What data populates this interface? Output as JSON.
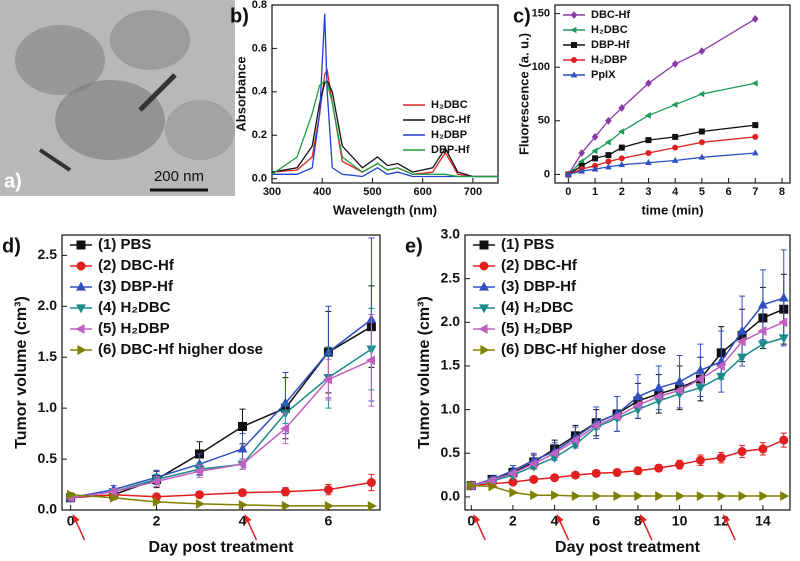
{
  "image_panel": {
    "panel_label": "a)",
    "scale_bar": "200 nm"
  },
  "chart_data": [
    {
      "type": "line",
      "panel_label": "b)",
      "xlabel": "Wavelength (nm)",
      "ylabel": "Absorbance",
      "xlim": [
        300,
        750
      ],
      "xticks": [
        300,
        400,
        500,
        600,
        700
      ],
      "ylim": [
        -0.02,
        0.8
      ],
      "yticks": [
        {
          "value": 0,
          "label": "0.0"
        },
        0.2,
        0.4,
        0.6,
        0.8
      ],
      "legend": "lower right",
      "x": [
        300,
        350,
        380,
        395,
        405,
        410,
        420,
        440,
        480,
        510,
        530,
        550,
        580,
        620,
        645,
        670,
        700,
        750
      ],
      "series": [
        {
          "name": "H₂DBC",
          "color": "#e02020",
          "values": [
            0.03,
            0.04,
            0.1,
            0.3,
            0.48,
            0.5,
            0.35,
            0.08,
            0.03,
            0.07,
            0.04,
            0.05,
            0.02,
            0.03,
            0.12,
            0.02,
            0.01,
            0.01
          ]
        },
        {
          "name": "DBC-Hf",
          "color": "#111111",
          "values": [
            0.03,
            0.05,
            0.15,
            0.35,
            0.44,
            0.45,
            0.4,
            0.15,
            0.05,
            0.1,
            0.06,
            0.07,
            0.03,
            0.05,
            0.14,
            0.03,
            0.01,
            0.01
          ]
        },
        {
          "name": "H₂DBP",
          "color": "#2040d0",
          "values": [
            0.02,
            0.02,
            0.05,
            0.3,
            0.76,
            0.4,
            0.05,
            0.02,
            0.01,
            0.05,
            0.02,
            0.03,
            0.01,
            0.01,
            0.01,
            0.01,
            0.01,
            0.01
          ]
        },
        {
          "name": "DBP-Hf",
          "color": "#20a040",
          "values": [
            0.02,
            0.1,
            0.3,
            0.43,
            0.45,
            0.44,
            0.35,
            0.1,
            0.03,
            0.07,
            0.04,
            0.05,
            0.02,
            0.02,
            0.02,
            0.01,
            0.01,
            0.01
          ]
        }
      ]
    },
    {
      "type": "line",
      "panel_label": "c)",
      "xlabel": "time (min)",
      "ylabel": "Fluorescence (a. u.)",
      "xlim": [
        -0.5,
        8.3
      ],
      "xticks": [
        0,
        1,
        2,
        3,
        4,
        5,
        6,
        7,
        8
      ],
      "ylim": [
        -8,
        158
      ],
      "yticks": [
        0,
        50,
        100,
        150
      ],
      "legend": "upper left",
      "x": [
        0,
        0.5,
        1,
        1.5,
        2,
        3,
        4,
        5,
        7
      ],
      "series": [
        {
          "name": "DBC-Hf",
          "color": "#8a3aa8",
          "marker": "diamond",
          "values": [
            0,
            20,
            35,
            50,
            62,
            85,
            103,
            115,
            145
          ]
        },
        {
          "name": "H₂DBC",
          "color": "#1f9a5a",
          "marker": "triangle-left",
          "values": [
            0,
            12,
            22,
            30,
            40,
            55,
            65,
            75,
            85
          ]
        },
        {
          "name": "DBP-Hf",
          "color": "#111111",
          "marker": "square",
          "values": [
            0,
            8,
            15,
            18,
            25,
            32,
            35,
            40,
            46
          ]
        },
        {
          "name": "H₂DBP",
          "color": "#e02020",
          "marker": "circle",
          "values": [
            0,
            5,
            8,
            12,
            15,
            20,
            25,
            30,
            35
          ]
        },
        {
          "name": "PpIX",
          "color": "#3050c0",
          "marker": "triangle-up",
          "values": [
            0,
            3,
            5,
            7,
            9,
            11,
            13,
            16,
            20
          ]
        }
      ]
    },
    {
      "type": "line",
      "panel_label": "d)",
      "xlabel": "Day post treatment",
      "ylabel": "Tumor volume (cm³)",
      "xlim": [
        -0.2,
        7.2
      ],
      "xticks": [
        0,
        2,
        4,
        6
      ],
      "ylim": [
        0,
        2.7
      ],
      "yticks": [
        {
          "value": 0,
          "label": "0.0"
        },
        0.5,
        {
          "value": 1,
          "label": "1.0"
        },
        1.5,
        {
          "value": 2,
          "label": "2.0"
        },
        2.5
      ],
      "legend": "upper left",
      "arrow_days": [
        0,
        4
      ],
      "x": [
        0,
        1,
        2,
        3,
        4,
        5,
        6,
        7
      ],
      "series": [
        {
          "name": "(1) PBS",
          "color": "#111111",
          "marker": "square",
          "values": [
            0.12,
            0.15,
            0.3,
            0.55,
            0.82,
            1.0,
            1.55,
            1.8
          ],
          "errors": [
            0.02,
            0.03,
            0.08,
            0.12,
            0.17,
            0.3,
            0.4,
            0.4
          ]
        },
        {
          "name": "(2) DBC-Hf",
          "color": "#e02020",
          "marker": "circle",
          "values": [
            0.12,
            0.15,
            0.13,
            0.15,
            0.17,
            0.18,
            0.2,
            0.27
          ],
          "errors": [
            0.02,
            0.02,
            0.02,
            0.03,
            0.03,
            0.04,
            0.05,
            0.08
          ]
        },
        {
          "name": "(3) DBP-Hf",
          "color": "#3050c0",
          "marker": "triangle-up",
          "values": [
            0.12,
            0.2,
            0.32,
            0.45,
            0.6,
            1.05,
            1.55,
            1.87
          ],
          "errors": [
            0.02,
            0.04,
            0.07,
            0.1,
            0.15,
            0.3,
            0.45,
            0.8
          ]
        },
        {
          "name": "(4) H₂DBC",
          "color": "#1a8a8a",
          "marker": "triangle-down",
          "values": [
            0.12,
            0.18,
            0.3,
            0.4,
            0.45,
            0.95,
            1.3,
            1.58
          ],
          "errors": [
            0.02,
            0.03,
            0.05,
            0.06,
            0.05,
            0.1,
            0.3,
            0.4
          ]
        },
        {
          "name": "(5) H₂DBP",
          "color": "#c060c0",
          "marker": "triangle-left",
          "values": [
            0.12,
            0.18,
            0.28,
            0.38,
            0.45,
            0.8,
            1.28,
            1.47
          ],
          "errors": [
            0.02,
            0.03,
            0.05,
            0.06,
            0.05,
            0.15,
            0.2,
            0.45
          ]
        },
        {
          "name": "(6) DBC-Hf higher dose",
          "color": "#808000",
          "marker": "triangle-right",
          "values": [
            0.15,
            0.12,
            0.08,
            0.06,
            0.05,
            0.04,
            0.04,
            0.04
          ],
          "errors": [
            0.02,
            0.02,
            0.01,
            0.01,
            0.01,
            0.01,
            0.01,
            0.01
          ]
        }
      ]
    },
    {
      "type": "line",
      "panel_label": "e)",
      "xlabel": "Day post treatment",
      "ylabel": "Tumor volume (cm³)",
      "xlim": [
        -0.3,
        15.3
      ],
      "xticks": [
        0,
        2,
        4,
        6,
        8,
        10,
        12,
        14
      ],
      "ylim": [
        -0.15,
        3.0
      ],
      "yticks": [
        {
          "value": 0,
          "label": "0.0"
        },
        0.5,
        {
          "value": 1,
          "label": "1.0"
        },
        1.5,
        {
          "value": 2,
          "label": "2.0"
        },
        2.5,
        {
          "value": 3,
          "label": "3.0"
        }
      ],
      "legend": "upper left",
      "arrow_days": [
        0,
        4,
        8,
        12
      ],
      "x": [
        0,
        1,
        2,
        3,
        4,
        5,
        6,
        7,
        8,
        9,
        10,
        11,
        12,
        13,
        14,
        15
      ],
      "series": [
        {
          "name": "(1) PBS",
          "color": "#111111",
          "marker": "square",
          "values": [
            0.13,
            0.2,
            0.28,
            0.4,
            0.55,
            0.7,
            0.85,
            0.95,
            1.1,
            1.18,
            1.25,
            1.35,
            1.65,
            1.85,
            2.05,
            2.15
          ],
          "errors": [
            0.02,
            0.03,
            0.05,
            0.08,
            0.1,
            0.12,
            0.15,
            0.2,
            0.2,
            0.22,
            0.25,
            0.25,
            0.3,
            0.3,
            0.35,
            0.4
          ]
        },
        {
          "name": "(2) DBC-Hf",
          "color": "#e02020",
          "marker": "circle",
          "values": [
            0.13,
            0.15,
            0.17,
            0.2,
            0.22,
            0.25,
            0.27,
            0.28,
            0.3,
            0.33,
            0.37,
            0.42,
            0.45,
            0.52,
            0.55,
            0.65
          ],
          "errors": [
            0.02,
            0.02,
            0.02,
            0.03,
            0.03,
            0.03,
            0.03,
            0.04,
            0.04,
            0.04,
            0.05,
            0.06,
            0.06,
            0.07,
            0.07,
            0.08
          ]
        },
        {
          "name": "(3) DBP-Hf",
          "color": "#3050c0",
          "marker": "triangle-up",
          "values": [
            0.13,
            0.2,
            0.3,
            0.42,
            0.52,
            0.68,
            0.85,
            0.95,
            1.15,
            1.25,
            1.32,
            1.45,
            1.55,
            1.9,
            2.2,
            2.28
          ],
          "errors": [
            0.02,
            0.03,
            0.06,
            0.08,
            0.1,
            0.12,
            0.18,
            0.2,
            0.25,
            0.25,
            0.3,
            0.3,
            0.35,
            0.4,
            0.4,
            0.55
          ]
        },
        {
          "name": "(4) H₂DBC",
          "color": "#1a8a8a",
          "marker": "triangle-down",
          "values": [
            0.13,
            0.18,
            0.25,
            0.35,
            0.45,
            0.6,
            0.8,
            0.9,
            1.0,
            1.1,
            1.18,
            1.25,
            1.38,
            1.6,
            1.75,
            1.82
          ]
        },
        {
          "name": "(5) H₂DBP",
          "color": "#c060c0",
          "marker": "triangle-left",
          "values": [
            0.13,
            0.19,
            0.27,
            0.38,
            0.5,
            0.65,
            0.82,
            0.92,
            1.05,
            1.15,
            1.22,
            1.35,
            1.5,
            1.78,
            1.9,
            2.0
          ]
        },
        {
          "name": "(6) DBC-Hf higher dose",
          "color": "#808000",
          "marker": "triangle-right",
          "values": [
            0.13,
            0.12,
            0.05,
            0.02,
            0.02,
            0.01,
            0.01,
            0.01,
            0.01,
            0.01,
            0.01,
            0.01,
            0.01,
            0.01,
            0.01,
            0.01
          ]
        }
      ]
    }
  ]
}
